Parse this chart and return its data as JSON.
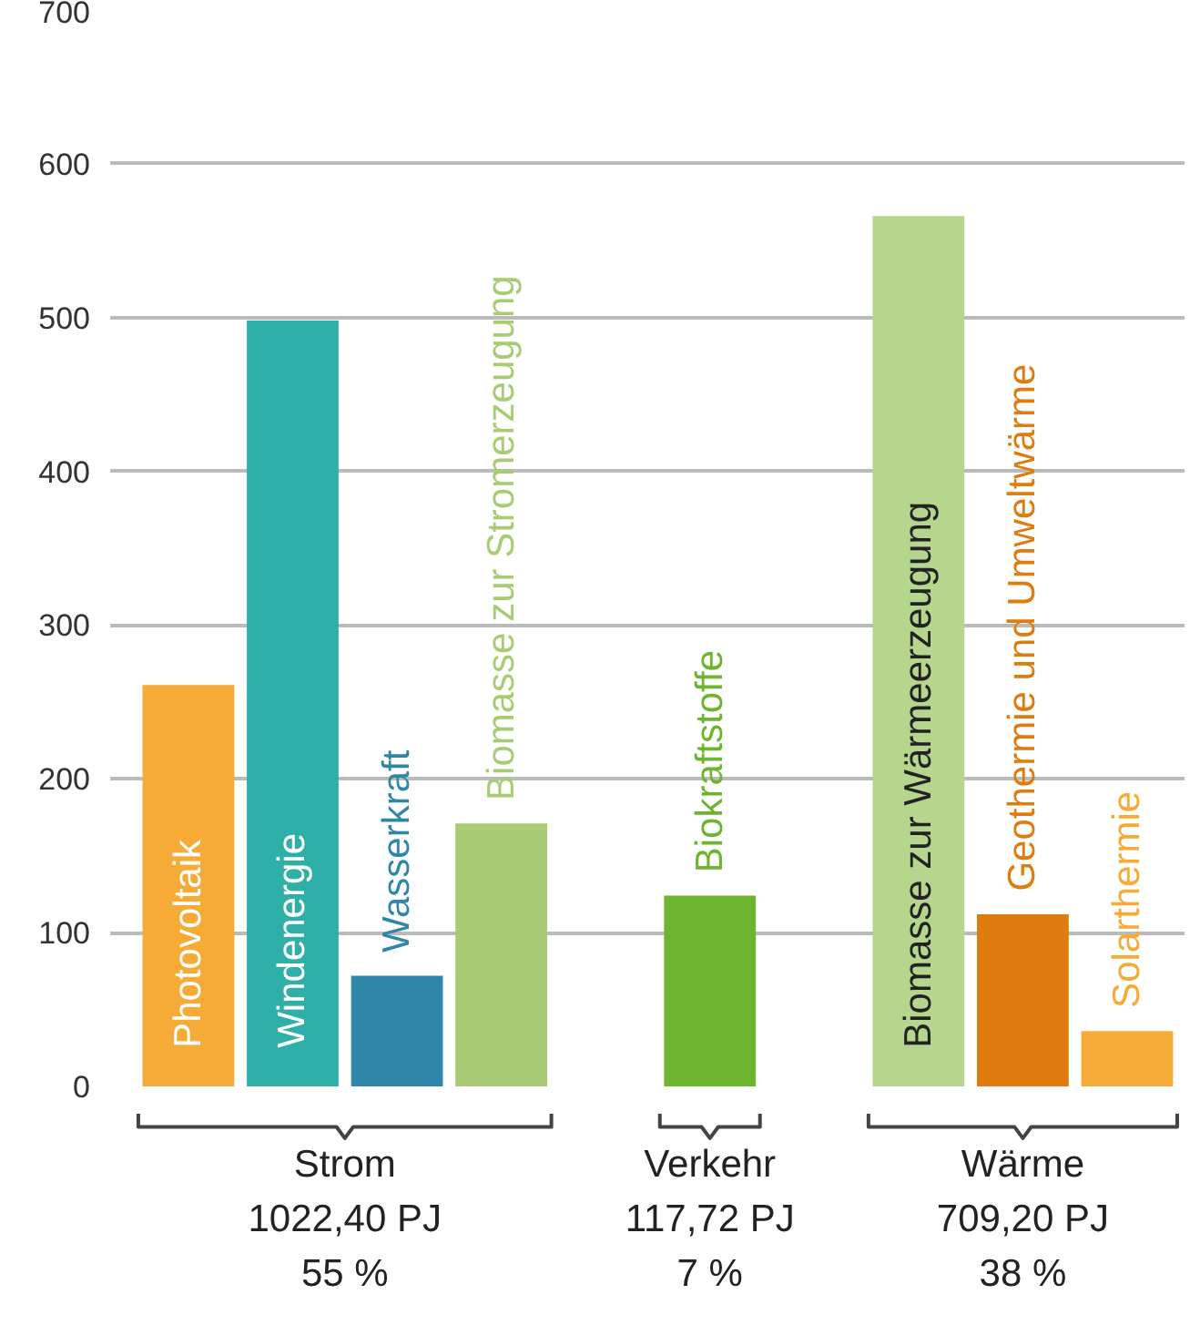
{
  "chart_data": {
    "type": "bar",
    "categories": [
      "Photovoltaik",
      "Windenergie",
      "Wasserkraft",
      "Biomasse zur Stromerzeugung",
      null,
      "Biokraftstoffe",
      null,
      "Biomasse zur Wärmeerzeugung",
      "Geothermie und Umweltwärme",
      "Solarthermie"
    ],
    "values": [
      261,
      498,
      72,
      171,
      null,
      124,
      null,
      566,
      112,
      36
    ],
    "colors": [
      "#f5ab35",
      "#2eb0a8",
      "#2e87a8",
      "#a8cc74",
      "#ffffff",
      "#6db52e",
      "#ffffff",
      "#b5d68c",
      "#e07b0e",
      "#f5ab35"
    ],
    "ylim": [
      0,
      700
    ],
    "yticks": [
      0,
      100,
      200,
      300,
      400,
      500,
      600,
      700
    ],
    "grid": "y",
    "annotations": [
      "Strom\n1022,40 PJ\n55 %",
      "Verkehr\n117,72 PJ\n7 %",
      "Wärme\n709,20 PJ\n38 %"
    ]
  }
}
